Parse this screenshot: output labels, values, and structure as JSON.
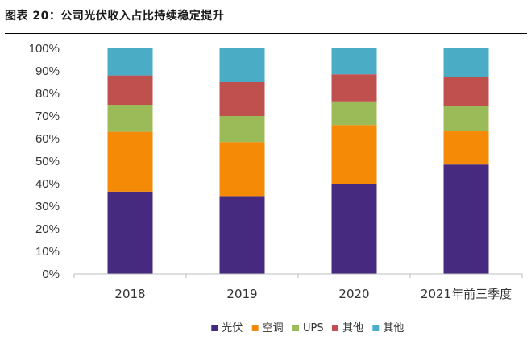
{
  "figure": {
    "title": "图表 20：公司光伏收入占比持续稳定提升"
  },
  "chart_data": {
    "type": "bar",
    "stacked": true,
    "percent": true,
    "categories": [
      "2018",
      "2019",
      "2020",
      "2021年前三季度"
    ],
    "y_ticks": [
      "0%",
      "10%",
      "20%",
      "30%",
      "40%",
      "50%",
      "60%",
      "70%",
      "80%",
      "90%",
      "100%"
    ],
    "ylim": [
      0,
      100
    ],
    "grid": false,
    "legend_position": "bottom",
    "series": [
      {
        "name": "光伏",
        "color": "#452A7F",
        "values": [
          36.5,
          34.5,
          40,
          48.5
        ]
      },
      {
        "name": "空调",
        "color": "#F58A07",
        "values": [
          26.5,
          24,
          26,
          15
        ]
      },
      {
        "name": "UPS",
        "color": "#9BBB59",
        "values": [
          12,
          11.5,
          10.5,
          11
        ]
      },
      {
        "name": "其他",
        "color": "#C0504D",
        "values": [
          13,
          15,
          12,
          13
        ]
      },
      {
        "name": "其他",
        "color": "#4BACC6",
        "values": [
          12,
          15,
          11.5,
          12.5
        ]
      }
    ]
  }
}
